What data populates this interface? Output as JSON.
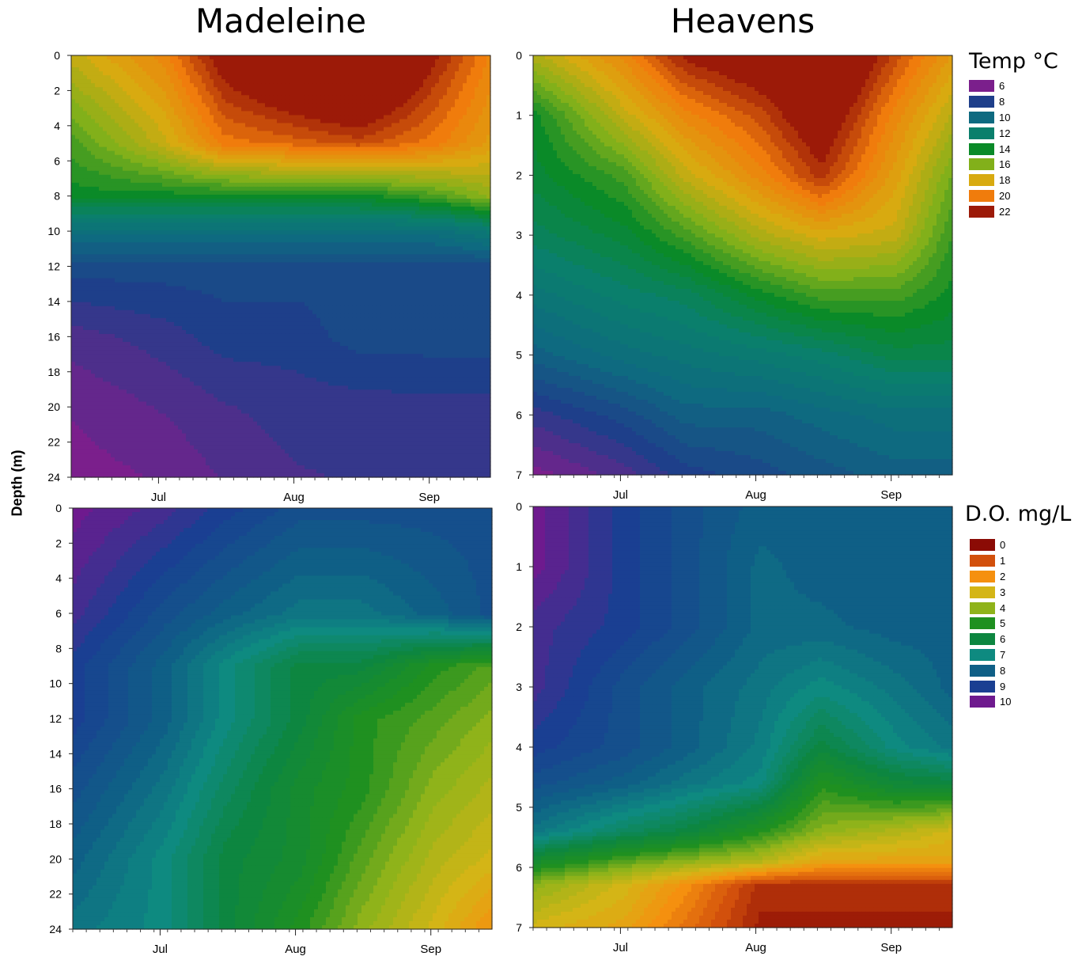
{
  "figure": {
    "y_axis_label": "Depth (m)",
    "columns": [
      "Madeleine",
      "Heavens"
    ],
    "legend_temp": {
      "title": "Temp °C",
      "items": [
        {
          "label": "6",
          "color": "#7b1f8c"
        },
        {
          "label": "8",
          "color": "#1e3f8a"
        },
        {
          "label": "10",
          "color": "#0e6a80"
        },
        {
          "label": "12",
          "color": "#0a7f6c"
        },
        {
          "label": "14",
          "color": "#0a8a28"
        },
        {
          "label": "16",
          "color": "#82b01a"
        },
        {
          "label": "18",
          "color": "#d8aa10"
        },
        {
          "label": "20",
          "color": "#f07c0c"
        },
        {
          "label": "22",
          "color": "#9c1a08"
        }
      ]
    },
    "legend_do": {
      "title": "D.O. mg/L",
      "items": [
        {
          "label": "0",
          "color": "#8b0b05"
        },
        {
          "label": "1",
          "color": "#d2500c"
        },
        {
          "label": "2",
          "color": "#f5900f"
        },
        {
          "label": "3",
          "color": "#d4b516"
        },
        {
          "label": "4",
          "color": "#8fb31a"
        },
        {
          "label": "5",
          "color": "#1f9020"
        },
        {
          "label": "6",
          "color": "#0d8640"
        },
        {
          "label": "7",
          "color": "#0e8a80"
        },
        {
          "label": "8",
          "color": "#0f5f86"
        },
        {
          "label": "9",
          "color": "#1a3f92"
        },
        {
          "label": "10",
          "color": "#6e1a8e"
        }
      ]
    }
  },
  "chart_data": [
    {
      "type": "heatmap",
      "title": "Madeleine",
      "variable": "Temp °C",
      "ylabel": "Depth (m)",
      "ylim": [
        0,
        24
      ],
      "y_reversed": true,
      "yticks": [
        0,
        2,
        4,
        6,
        8,
        10,
        12,
        14,
        16,
        18,
        20,
        22,
        24
      ],
      "xtick_labels": [
        "Jul",
        "Aug",
        "Sep"
      ],
      "x": [
        "Jun 10",
        "Jul 1",
        "Jul 15",
        "Aug 1",
        "Aug 15",
        "Sep 1",
        "Sep 15"
      ],
      "depth": [
        0,
        5,
        8,
        10,
        12,
        16,
        20,
        24
      ],
      "values": [
        [
          17.5,
          19.5,
          22.5,
          24.5,
          25.5,
          22.0,
          19.5
        ],
        [
          15.0,
          17.5,
          20.0,
          20.5,
          21.0,
          20.0,
          18.5
        ],
        [
          14.0,
          14.0,
          14.0,
          14.0,
          14.0,
          15.0,
          16.5
        ],
        [
          10.5,
          10.5,
          10.5,
          10.5,
          10.5,
          10.5,
          11.5
        ],
        [
          8.5,
          8.5,
          8.5,
          8.5,
          8.5,
          8.5,
          8.5
        ],
        [
          7.0,
          7.5,
          8.0,
          8.0,
          8.5,
          8.5,
          8.5
        ],
        [
          6.3,
          6.8,
          7.2,
          7.5,
          7.5,
          7.6,
          7.6
        ],
        [
          6.0,
          6.3,
          6.8,
          7.2,
          7.3,
          7.3,
          7.3
        ]
      ]
    },
    {
      "type": "heatmap",
      "title": "Heavens",
      "variable": "Temp °C",
      "ylabel": "Depth (m)",
      "ylim": [
        0,
        7
      ],
      "y_reversed": true,
      "yticks": [
        0,
        1,
        2,
        3,
        4,
        5,
        6,
        7
      ],
      "xtick_labels": [
        "Jul",
        "Aug",
        "Sep"
      ],
      "x": [
        "Jun 10",
        "Jul 1",
        "Jul 15",
        "Aug 1",
        "Aug 15",
        "Sep 1",
        "Sep 15"
      ],
      "depth": [
        0,
        1,
        2,
        3,
        4,
        5,
        6,
        7
      ],
      "values": [
        [
          17.0,
          19.5,
          22.0,
          23.0,
          24.5,
          21.0,
          18.5
        ],
        [
          14.0,
          17.5,
          19.5,
          21.0,
          23.0,
          19.5,
          17.0
        ],
        [
          13.5,
          15.0,
          17.5,
          19.5,
          21.5,
          18.5,
          15.5
        ],
        [
          12.5,
          13.5,
          15.0,
          17.0,
          18.0,
          17.5,
          14.5
        ],
        [
          11.0,
          12.0,
          12.5,
          14.0,
          15.0,
          15.0,
          14.0
        ],
        [
          9.5,
          10.5,
          11.0,
          11.5,
          12.0,
          13.0,
          13.0
        ],
        [
          7.5,
          8.5,
          9.5,
          9.5,
          10.0,
          10.5,
          10.5
        ],
        [
          6.0,
          7.0,
          8.0,
          8.5,
          9.0,
          9.5,
          9.5
        ]
      ]
    },
    {
      "type": "heatmap",
      "title": "Madeleine",
      "variable": "D.O. mg/L",
      "ylabel": "Depth (m)",
      "ylim": [
        0,
        24
      ],
      "y_reversed": true,
      "yticks": [
        0,
        2,
        4,
        6,
        8,
        10,
        12,
        14,
        16,
        18,
        20,
        22,
        24
      ],
      "xtick_labels": [
        "Jul",
        "Aug",
        "Sep"
      ],
      "x": [
        "Jun 10",
        "Jul 1",
        "Jul 15",
        "Aug 1",
        "Aug 15",
        "Sep 1",
        "Sep 15"
      ],
      "depth": [
        0,
        6,
        9,
        12,
        16,
        20,
        24
      ],
      "values": [
        [
          10.0,
          9.5,
          9.0,
          8.5,
          8.5,
          8.5,
          8.5
        ],
        [
          9.5,
          8.5,
          8.0,
          7.5,
          7.5,
          8.0,
          8.5
        ],
        [
          9.0,
          8.0,
          7.0,
          6.0,
          6.0,
          5.0,
          4.5
        ],
        [
          9.0,
          8.0,
          7.0,
          6.0,
          5.0,
          4.5,
          4.0
        ],
        [
          8.5,
          7.5,
          6.5,
          5.5,
          5.0,
          4.0,
          3.5
        ],
        [
          8.0,
          7.0,
          6.0,
          5.5,
          4.5,
          3.5,
          3.0
        ],
        [
          7.5,
          7.0,
          6.0,
          5.0,
          4.0,
          3.0,
          2.0
        ]
      ]
    },
    {
      "type": "heatmap",
      "title": "Heavens",
      "variable": "D.O. mg/L",
      "ylabel": "Depth (m)",
      "ylim": [
        0,
        7
      ],
      "y_reversed": true,
      "yticks": [
        0,
        1,
        2,
        3,
        4,
        5,
        6,
        7
      ],
      "xtick_labels": [
        "Jul",
        "Aug",
        "Sep"
      ],
      "x": [
        "Jun 10",
        "Jul 1",
        "Jul 15",
        "Aug 1",
        "Aug 15",
        "Sep 1",
        "Sep 15"
      ],
      "depth": [
        0,
        1,
        2,
        3,
        4,
        4.6,
        5.4,
        5.9,
        6.3,
        7
      ],
      "values": [
        [
          10.0,
          9.0,
          8.5,
          8.0,
          8.0,
          8.0,
          8.0
        ],
        [
          10.0,
          9.0,
          8.5,
          7.8,
          8.0,
          8.0,
          8.0
        ],
        [
          9.5,
          9.0,
          8.5,
          7.8,
          7.8,
          8.0,
          8.0
        ],
        [
          9.5,
          8.5,
          8.0,
          7.5,
          7.0,
          7.5,
          8.0
        ],
        [
          9.0,
          8.5,
          8.0,
          7.3,
          6.0,
          7.0,
          7.5
        ],
        [
          8.5,
          8.0,
          7.5,
          7.0,
          5.0,
          5.8,
          6.0
        ],
        [
          7.5,
          6.5,
          6.0,
          5.0,
          4.0,
          3.5,
          3.0
        ],
        [
          5.5,
          4.5,
          4.0,
          3.5,
          2.5,
          2.5,
          2.5
        ],
        [
          4.0,
          3.0,
          2.0,
          0.5,
          0.5,
          0.5,
          0.5
        ],
        [
          3.0,
          2.5,
          1.5,
          0.3,
          0.3,
          0.3,
          0.3
        ]
      ]
    }
  ]
}
